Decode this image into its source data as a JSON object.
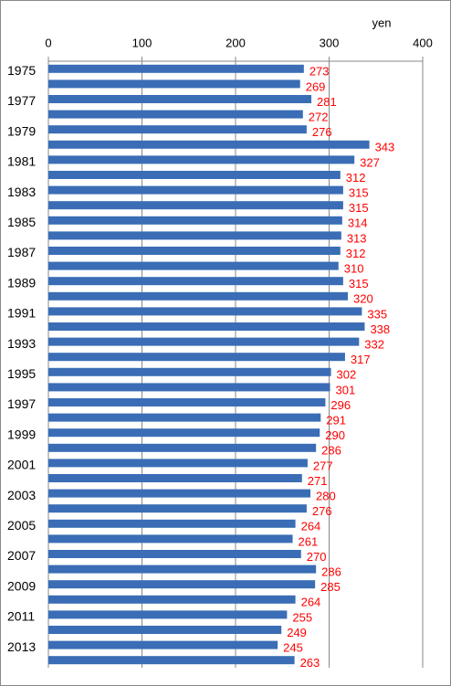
{
  "chart_data": {
    "type": "bar",
    "orientation": "horizontal",
    "x_axis_label": "yen",
    "categories": [
      "1975",
      null,
      "1977",
      null,
      "1979",
      null,
      "1981",
      null,
      "1983",
      null,
      "1985",
      null,
      "1987",
      null,
      "1989",
      null,
      "1991",
      null,
      "1993",
      null,
      "1995",
      null,
      "1997",
      null,
      "1999",
      null,
      "2001",
      null,
      "2003",
      null,
      "2005",
      null,
      "2007",
      null,
      "2009",
      null,
      "2011",
      null,
      "2013",
      null
    ],
    "values": [
      273,
      269,
      281,
      272,
      276,
      343,
      327,
      312,
      315,
      315,
      314,
      313,
      312,
      310,
      315,
      320,
      335,
      338,
      332,
      317,
      302,
      301,
      296,
      291,
      290,
      286,
      277,
      271,
      280,
      276,
      264,
      261,
      270,
      286,
      285,
      264,
      255,
      249,
      245,
      263
    ],
    "color": "#3a6db5",
    "value_label_color": "#ff0000",
    "xlim": [
      0,
      400
    ],
    "xticks": [
      0,
      100,
      200,
      300,
      400
    ],
    "grid": true
  }
}
